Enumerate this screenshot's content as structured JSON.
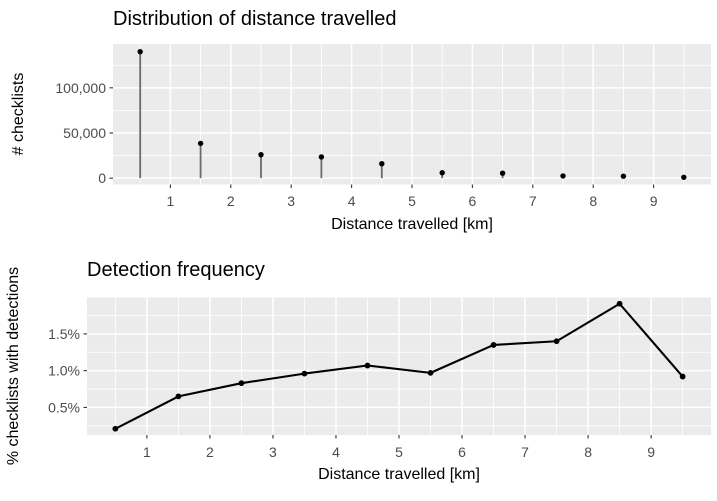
{
  "style": {
    "panel_background": "#EBEBEB",
    "grid_major_color": "#FFFFFF",
    "grid_minor_color": "#FFFFFF",
    "tick_mark_color": "#333333",
    "tick_label_color": "#4D4D4D",
    "title_color": "#000000",
    "stem_color": "#6B6B6B",
    "point_color": "#000000",
    "line_color": "#000000"
  },
  "chart_data": [
    {
      "type": "lollipop",
      "title": "Distribution of distance travelled",
      "xlabel": "Distance travelled [km]",
      "ylabel": "# checklists",
      "x": [
        0.5,
        1.5,
        2.5,
        3.5,
        4.5,
        5.5,
        6.5,
        7.5,
        8.5,
        9.5
      ],
      "values": [
        140000,
        38500,
        26000,
        23500,
        16000,
        6000,
        5500,
        2500,
        2200,
        1000
      ],
      "x_ticks": [
        {
          "v": 1,
          "label": "1"
        },
        {
          "v": 2,
          "label": "2"
        },
        {
          "v": 3,
          "label": "3"
        },
        {
          "v": 4,
          "label": "4"
        },
        {
          "v": 5,
          "label": "5"
        },
        {
          "v": 6,
          "label": "6"
        },
        {
          "v": 7,
          "label": "7"
        },
        {
          "v": 8,
          "label": "8"
        },
        {
          "v": 9,
          "label": "9"
        }
      ],
      "y_ticks": [
        {
          "v": 0,
          "label": "0"
        },
        {
          "v": 50000,
          "label": "50,000"
        },
        {
          "v": 100000,
          "label": "100,000"
        }
      ],
      "x_minor": [
        0.5,
        1.5,
        2.5,
        3.5,
        4.5,
        5.5,
        6.5,
        7.5,
        8.5,
        9.5
      ],
      "y_minor": [
        25000,
        75000,
        125000
      ],
      "xlim": [
        0.05,
        9.95
      ],
      "ylim": [
        -7000,
        148500
      ],
      "grid": true,
      "legend": "none"
    },
    {
      "type": "line",
      "title": "Detection frequency",
      "xlabel": "Distance travelled [km]",
      "ylabel": "% checklists with detections",
      "x": [
        0.5,
        1.5,
        2.5,
        3.5,
        4.5,
        5.5,
        6.5,
        7.5,
        8.5,
        9.5
      ],
      "values": [
        0.21,
        0.65,
        0.83,
        0.96,
        1.07,
        0.97,
        1.35,
        1.4,
        1.91,
        0.92
      ],
      "x_ticks": [
        {
          "v": 1,
          "label": "1"
        },
        {
          "v": 2,
          "label": "2"
        },
        {
          "v": 3,
          "label": "3"
        },
        {
          "v": 4,
          "label": "4"
        },
        {
          "v": 5,
          "label": "5"
        },
        {
          "v": 6,
          "label": "6"
        },
        {
          "v": 7,
          "label": "7"
        },
        {
          "v": 8,
          "label": "8"
        },
        {
          "v": 9,
          "label": "9"
        }
      ],
      "y_ticks": [
        {
          "v": 0.5,
          "label": "0.5%"
        },
        {
          "v": 1.0,
          "label": "1.0%"
        },
        {
          "v": 1.5,
          "label": "1.5%"
        }
      ],
      "x_minor": [
        0.5,
        1.5,
        2.5,
        3.5,
        4.5,
        5.5,
        6.5,
        7.5,
        8.5,
        9.5
      ],
      "y_minor": [
        0.25,
        0.75,
        1.25,
        1.75
      ],
      "xlim": [
        0.05,
        9.95
      ],
      "ylim": [
        0.125,
        1.995
      ],
      "grid": true,
      "legend": "none"
    }
  ]
}
